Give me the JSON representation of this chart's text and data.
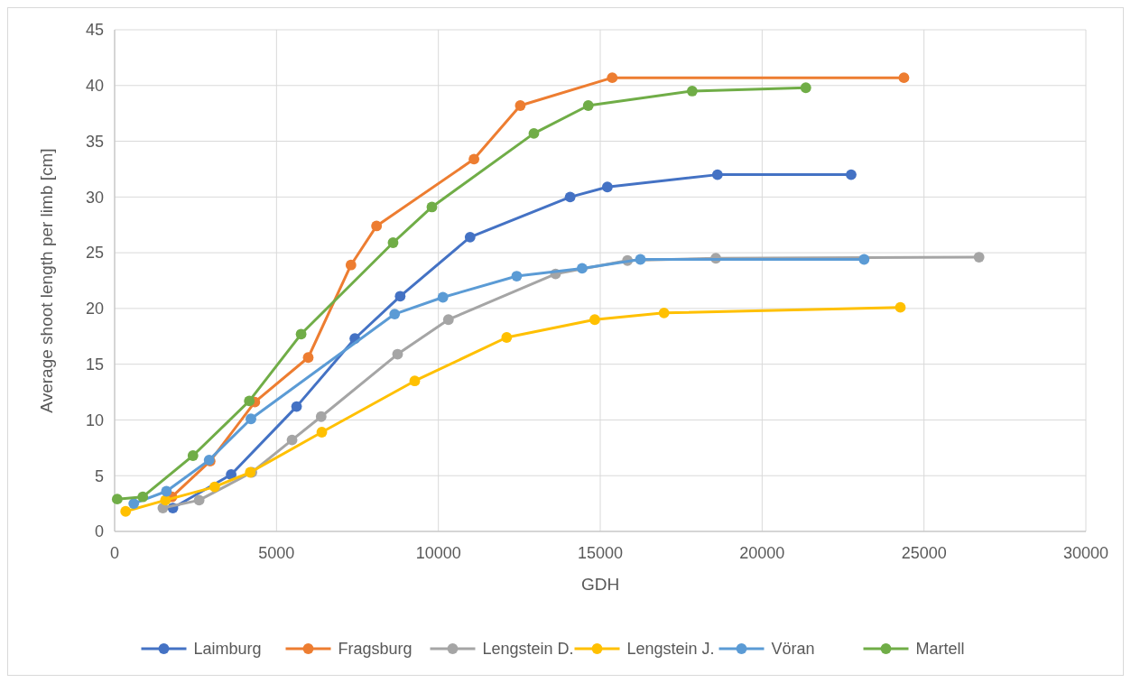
{
  "chart_data": {
    "type": "line",
    "xlabel": "GDH",
    "ylabel": "Average shoot length per limb [cm]",
    "xlim": [
      0,
      30000
    ],
    "xticks": [
      0,
      5000,
      10000,
      15000,
      20000,
      25000,
      30000
    ],
    "ylim": [
      0,
      45
    ],
    "yticks": [
      0,
      5,
      10,
      15,
      20,
      25,
      30,
      35,
      40,
      45
    ],
    "grid": true,
    "legend": "bottom",
    "marker": "circle",
    "line_style": "solid",
    "series": [
      {
        "name": "Laimburg",
        "color": "#4472c4",
        "x": [
          1800,
          3600,
          5620,
          7420,
          8820,
          10980,
          14070,
          15220,
          18620,
          22750
        ],
        "values": [
          2.1,
          5.1,
          11.2,
          17.3,
          21.1,
          26.4,
          30.0,
          30.9,
          32.0,
          32.0
        ]
      },
      {
        "name": "Fragsburg",
        "color": "#ed7d31",
        "x": [
          1770,
          2950,
          4330,
          5980,
          7300,
          8090,
          11100,
          12530,
          15370,
          24380
        ],
        "values": [
          3.1,
          6.3,
          11.6,
          15.6,
          23.9,
          27.4,
          33.4,
          38.2,
          40.7,
          40.7
        ]
      },
      {
        "name": "Lengstein D.",
        "color": "#a5a5a5",
        "x": [
          1490,
          2610,
          4240,
          5480,
          6380,
          8740,
          10310,
          13620,
          15840,
          18570,
          26700
        ],
        "values": [
          2.1,
          2.8,
          5.3,
          8.2,
          10.3,
          15.9,
          19.0,
          23.1,
          24.3,
          24.5,
          24.6
        ]
      },
      {
        "name": "Lengstein J.",
        "color": "#ffc000",
        "x": [
          340,
          1570,
          3090,
          4190,
          6400,
          9270,
          12110,
          14830,
          16970,
          24270
        ],
        "values": [
          1.8,
          2.8,
          4.0,
          5.3,
          8.9,
          13.5,
          17.4,
          19.0,
          19.6,
          20.1
        ]
      },
      {
        "name": "Vöran",
        "color": "#5b9bd5",
        "x": [
          590,
          1600,
          2920,
          4210,
          8650,
          10140,
          12420,
          14440,
          16240,
          23150
        ],
        "values": [
          2.5,
          3.6,
          6.4,
          10.1,
          19.5,
          21.0,
          22.9,
          23.6,
          24.4,
          24.4
        ]
      },
      {
        "name": "Martell",
        "color": "#70ad47",
        "x": [
          80,
          870,
          2420,
          4160,
          5760,
          8600,
          9800,
          12950,
          14630,
          17840,
          21350
        ],
        "values": [
          2.9,
          3.1,
          6.8,
          11.7,
          17.7,
          25.9,
          29.1,
          35.7,
          38.2,
          39.5,
          39.8
        ]
      }
    ]
  }
}
